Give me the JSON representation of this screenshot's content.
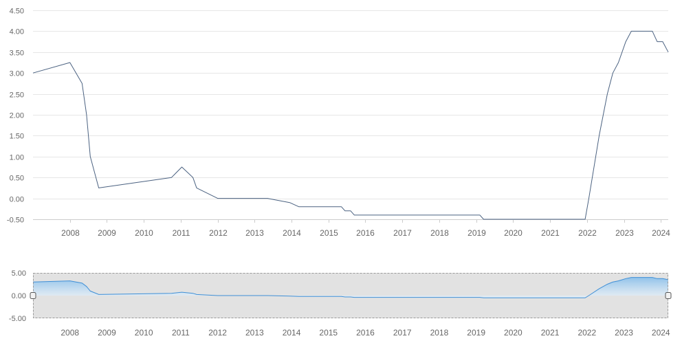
{
  "colors": {
    "main_line": "#4a6180",
    "grid": "#e6e6e6",
    "tick_text": "#666666",
    "navigator_line": "#3f8fd6",
    "navigator_fill_top": "#8cc0ea",
    "navigator_fill_bottom": "#e8f2fb",
    "navigator_mask": "#e2e2e2",
    "navigator_outline": "#999999"
  },
  "chart_data": [
    {
      "type": "line",
      "role": "main",
      "title": "",
      "xlabel": "",
      "ylabel": "",
      "xlim": [
        2007.5,
        2024.7
      ],
      "ylim": [
        -0.5,
        4.5
      ],
      "y_ticks": [
        "-0.50",
        "0.00",
        "0.50",
        "1.00",
        "1.50",
        "2.00",
        "2.50",
        "3.00",
        "3.50",
        "4.00",
        "4.50"
      ],
      "x_ticks": [
        "2008",
        "2009",
        "2010",
        "2011",
        "2012",
        "2013",
        "2014",
        "2015",
        "2016",
        "2017",
        "2018",
        "2019",
        "2020",
        "2021",
        "2022",
        "2023",
        "2024"
      ],
      "grid": true,
      "legend": "none",
      "series": [
        {
          "points": [
            [
              2007.5,
              3.0
            ],
            [
              2008.5,
              3.25
            ],
            [
              2008.83,
              2.75
            ],
            [
              2008.95,
              2.0
            ],
            [
              2009.05,
              1.0
            ],
            [
              2009.28,
              0.25
            ],
            [
              2011.25,
              0.5
            ],
            [
              2011.53,
              0.75
            ],
            [
              2011.83,
              0.5
            ],
            [
              2011.93,
              0.25
            ],
            [
              2012.5,
              0.0
            ],
            [
              2013.85,
              0.0
            ],
            [
              2014.45,
              -0.1
            ],
            [
              2014.7,
              -0.2
            ],
            [
              2015.85,
              -0.2
            ],
            [
              2015.95,
              -0.3
            ],
            [
              2016.1,
              -0.3
            ],
            [
              2016.2,
              -0.4
            ],
            [
              2019.6,
              -0.4
            ],
            [
              2019.7,
              -0.5
            ],
            [
              2022.45,
              -0.5
            ],
            [
              2022.55,
              0.0
            ],
            [
              2022.83,
              1.5
            ],
            [
              2023.05,
              2.5
            ],
            [
              2023.2,
              3.0
            ],
            [
              2023.35,
              3.25
            ],
            [
              2023.55,
              3.75
            ],
            [
              2023.7,
              4.0
            ],
            [
              2024.27,
              4.0
            ],
            [
              2024.4,
              3.75
            ],
            [
              2024.55,
              3.75
            ],
            [
              2024.7,
              3.5
            ]
          ]
        }
      ]
    },
    {
      "type": "area",
      "role": "navigator",
      "xlim": [
        2007.5,
        2024.7
      ],
      "ylim": [
        -5,
        5
      ],
      "y_ticks": [
        "5.00",
        "0.00",
        "-5.00"
      ],
      "x_ticks": [
        "2008",
        "2009",
        "2010",
        "2011",
        "2012",
        "2013",
        "2014",
        "2015",
        "2016",
        "2017",
        "2018",
        "2019",
        "2020",
        "2021",
        "2022",
        "2023",
        "2024"
      ],
      "series_ref": "main"
    }
  ]
}
